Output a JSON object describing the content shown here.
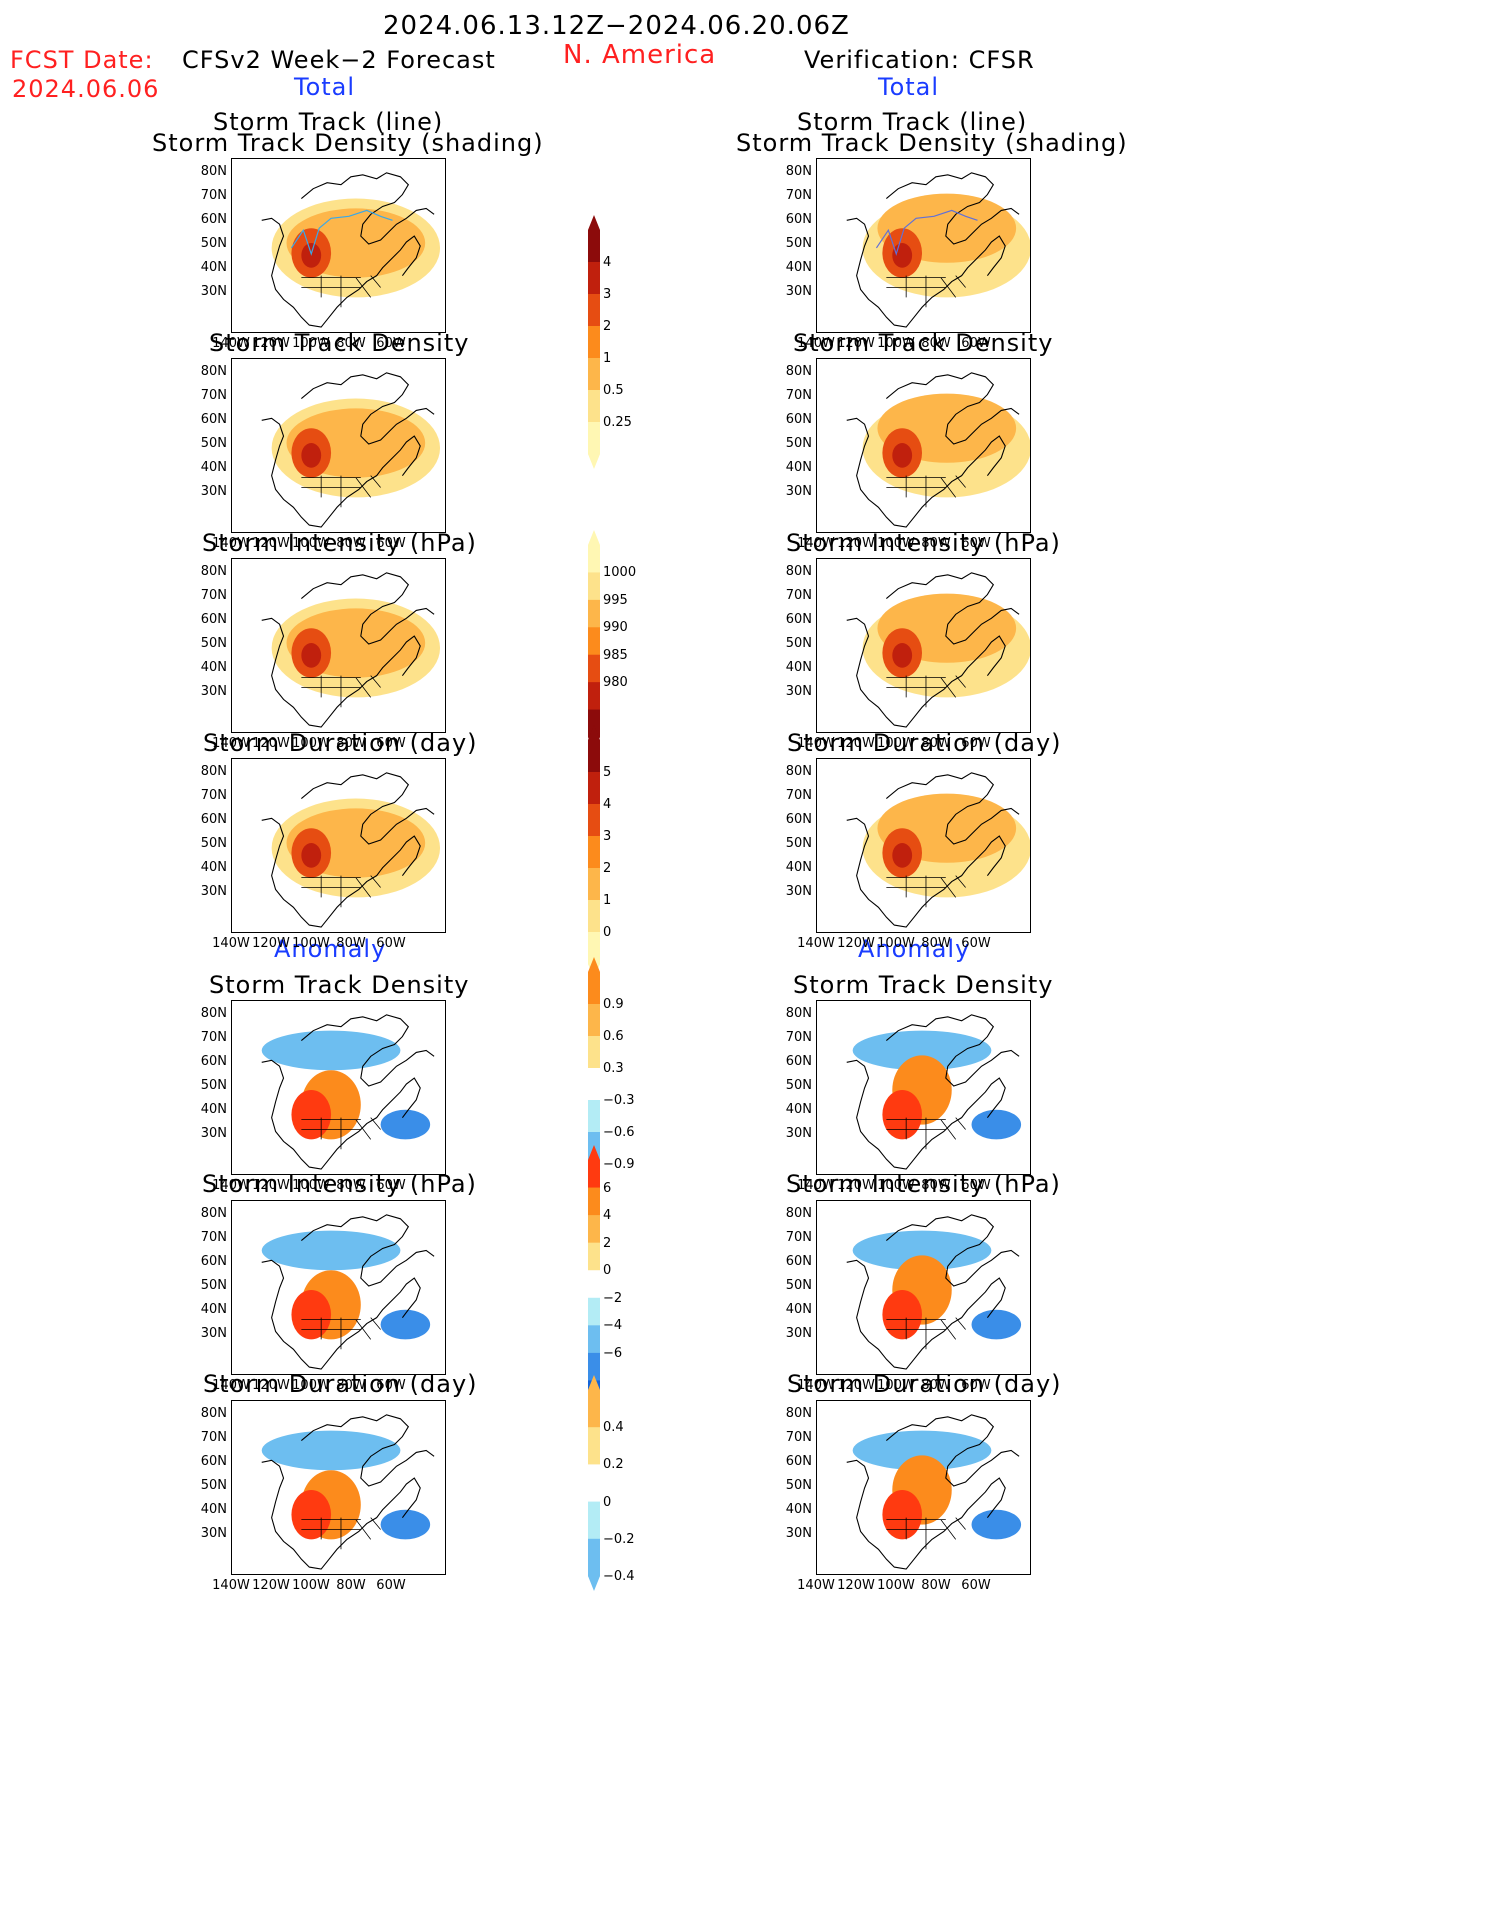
{
  "header": {
    "period": "2024.06.13.12Z−2024.06.20.06Z",
    "region": "N. America",
    "fcst_label": "FCST Date:",
    "fcst_date": "2024.06.06",
    "left_title": "CFSv2 Week−2 Forecast",
    "right_title": "Verification: CFSR",
    "total_left": "Total",
    "total_right": "Total",
    "anomaly_left": "Anomaly",
    "anomaly_right": "Anomaly"
  },
  "panel_titles": {
    "track_line": "Storm Track (line)",
    "track_shading": "Storm Track Density (shading)",
    "density": "Storm Track Density",
    "intensity": "Storm Intensity (hPa)",
    "duration": "Storm Duration (day)"
  },
  "axes": {
    "lat": [
      "80N",
      "70N",
      "60N",
      "50N",
      "40N",
      "30N"
    ],
    "lon": [
      "140W",
      "120W",
      "100W",
      "80W",
      "60W"
    ]
  },
  "colorbars": {
    "density_total": [
      "4",
      "3",
      "2",
      "1",
      "0.5",
      "0.25"
    ],
    "intensity_total": [
      "1000",
      "995",
      "990",
      "985",
      "980"
    ],
    "duration_total": [
      "5",
      "4",
      "3",
      "2",
      "1",
      "0"
    ],
    "density_anom": [
      "0.9",
      "0.6",
      "0.3",
      "−0.3",
      "−0.6",
      "−0.9"
    ],
    "intensity_anom": [
      "6",
      "4",
      "2",
      "0",
      "−2",
      "−4",
      "−6"
    ],
    "duration_anom": [
      "0.4",
      "0.2",
      "0",
      "−0.2",
      "−0.4"
    ]
  },
  "colors": {
    "total_scale": [
      "#fff7b3",
      "#fde28b",
      "#fdb64a",
      "#fc8b1c",
      "#e64d12",
      "#c0200d",
      "#8c0b0b"
    ],
    "anom_pos": [
      "#fde28b",
      "#fdb64a",
      "#fc8b1c",
      "#ff3a10"
    ],
    "anom_neg": [
      "#b3ecf5",
      "#6dbef0",
      "#3a8ee8",
      "#1464d8"
    ]
  }
}
